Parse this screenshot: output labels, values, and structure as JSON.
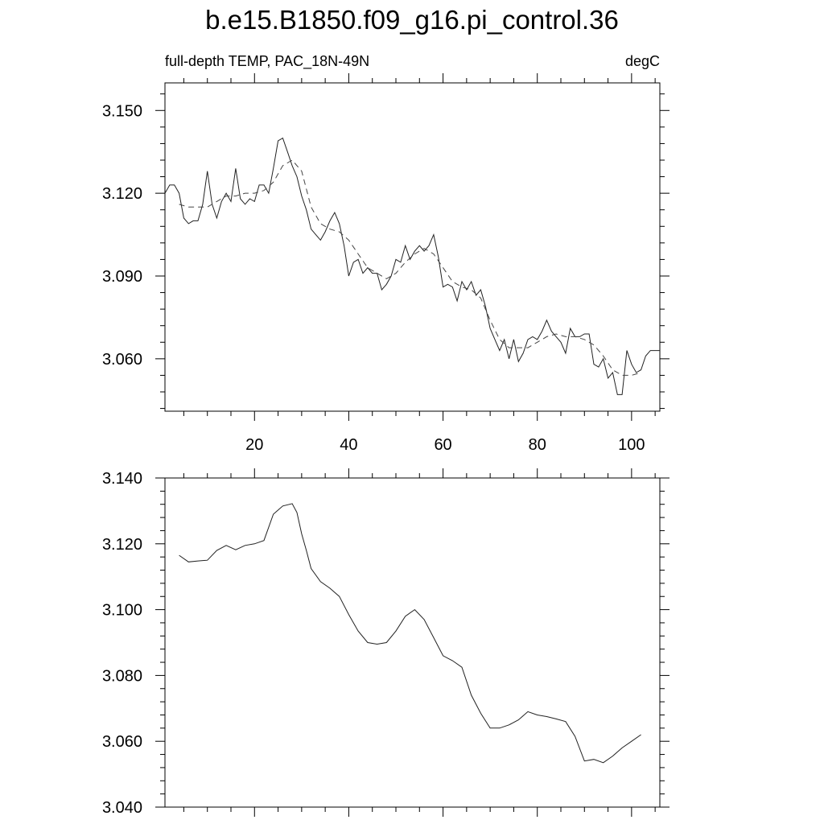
{
  "title": "b.e15.B1850.f09_g16.pi_control.36",
  "chart_data": [
    {
      "type": "line",
      "subtitle_left": "full-depth TEMP, PAC_18N-49N",
      "subtitle_right": "degC",
      "xlim": [
        1,
        106
      ],
      "ylim": [
        3.041,
        3.16
      ],
      "x_ticks": [
        20,
        40,
        60,
        80,
        100
      ],
      "x_tick_labels": [
        "20",
        "40",
        "60",
        "80",
        "100"
      ],
      "y_ticks": [
        3.06,
        3.09,
        3.12,
        3.15
      ],
      "y_tick_labels": [
        "3.060",
        "3.090",
        "3.120",
        "3.150"
      ],
      "series": [
        {
          "style": "solid",
          "x": [
            1,
            2,
            3,
            4,
            5,
            6,
            7,
            8,
            9,
            10,
            11,
            12,
            13,
            14,
            15,
            16,
            17,
            18,
            19,
            20,
            21,
            22,
            23,
            24,
            25,
            26,
            27,
            28,
            29,
            30,
            31,
            32,
            33,
            34,
            35,
            36,
            37,
            38,
            39,
            40,
            41,
            42,
            43,
            44,
            45,
            46,
            47,
            48,
            49,
            50,
            51,
            52,
            53,
            54,
            55,
            56,
            57,
            58,
            59,
            60,
            61,
            62,
            63,
            64,
            65,
            66,
            67,
            68,
            69,
            70,
            71,
            72,
            73,
            74,
            75,
            76,
            77,
            78,
            79,
            80,
            81,
            82,
            83,
            84,
            85,
            86,
            87,
            88,
            89,
            90,
            91,
            92,
            93,
            94,
            95,
            96,
            97,
            98,
            99,
            100,
            101,
            102,
            103,
            104,
            105,
            106
          ],
          "values": [
            3.12,
            3.123,
            3.123,
            3.12,
            3.111,
            3.109,
            3.11,
            3.11,
            3.116,
            3.128,
            3.116,
            3.111,
            3.117,
            3.12,
            3.117,
            3.129,
            3.118,
            3.116,
            3.118,
            3.117,
            3.123,
            3.123,
            3.12,
            3.129,
            3.139,
            3.14,
            3.135,
            3.13,
            3.126,
            3.119,
            3.114,
            3.107,
            3.105,
            3.103,
            3.106,
            3.11,
            3.113,
            3.109,
            3.101,
            3.09,
            3.095,
            3.096,
            3.091,
            3.093,
            3.091,
            3.091,
            3.085,
            3.087,
            3.09,
            3.096,
            3.095,
            3.101,
            3.096,
            3.099,
            3.101,
            3.099,
            3.101,
            3.105,
            3.097,
            3.086,
            3.087,
            3.086,
            3.081,
            3.088,
            3.085,
            3.088,
            3.083,
            3.085,
            3.079,
            3.071,
            3.067,
            3.063,
            3.067,
            3.06,
            3.067,
            3.059,
            3.062,
            3.067,
            3.068,
            3.067,
            3.07,
            3.074,
            3.07,
            3.068,
            3.066,
            3.062,
            3.071,
            3.068,
            3.068,
            3.069,
            3.069,
            3.058,
            3.057,
            3.06,
            3.053,
            3.055,
            3.047,
            3.047,
            3.063,
            3.058,
            3.055,
            3.056,
            3.061,
            3.063,
            3.063,
            3.063
          ]
        },
        {
          "style": "dashed",
          "x": [
            4,
            6,
            8,
            10,
            12,
            14,
            16,
            18,
            20,
            22,
            24,
            26,
            28,
            30,
            32,
            34,
            36,
            38,
            40,
            42,
            44,
            46,
            48,
            50,
            52,
            54,
            56,
            58,
            60,
            62,
            64,
            66,
            68,
            70,
            72,
            74,
            76,
            78,
            80,
            82,
            84,
            86,
            88,
            90,
            92,
            94,
            96,
            98,
            100,
            102
          ],
          "values": [
            3.116,
            3.115,
            3.115,
            3.115,
            3.117,
            3.119,
            3.119,
            3.12,
            3.12,
            3.121,
            3.124,
            3.13,
            3.132,
            3.128,
            3.115,
            3.109,
            3.107,
            3.106,
            3.103,
            3.098,
            3.093,
            3.091,
            3.089,
            3.091,
            3.095,
            3.098,
            3.1,
            3.098,
            3.093,
            3.088,
            3.086,
            3.085,
            3.082,
            3.074,
            3.067,
            3.064,
            3.064,
            3.064,
            3.066,
            3.068,
            3.069,
            3.068,
            3.068,
            3.067,
            3.065,
            3.061,
            3.056,
            3.054,
            3.054,
            3.055
          ]
        }
      ]
    },
    {
      "type": "line",
      "xlim": [
        1,
        106
      ],
      "ylim": [
        3.04,
        3.14
      ],
      "x_ticks": [
        20,
        40,
        60,
        80,
        100
      ],
      "y_ticks": [
        3.04,
        3.06,
        3.08,
        3.1,
        3.12,
        3.14
      ],
      "y_tick_labels": [
        "3.040",
        "3.060",
        "3.080",
        "3.100",
        "3.120",
        "3.140"
      ],
      "series": [
        {
          "style": "solid",
          "x": [
            4,
            6,
            8,
            10,
            12,
            14,
            16,
            18,
            20,
            22,
            24,
            26,
            28,
            29,
            30,
            31,
            32,
            34,
            36,
            38,
            40,
            42,
            44,
            46,
            48,
            50,
            52,
            54,
            56,
            58,
            60,
            62,
            64,
            66,
            68,
            70,
            72,
            74,
            76,
            78,
            80,
            82,
            84,
            86,
            88,
            90,
            92,
            94,
            96,
            98,
            100,
            102
          ],
          "values": [
            3.1165,
            3.1145,
            3.1148,
            3.115,
            3.118,
            3.1195,
            3.1182,
            3.1195,
            3.12,
            3.121,
            3.129,
            3.1315,
            3.1322,
            3.1295,
            3.123,
            3.118,
            3.1125,
            3.1085,
            3.1065,
            3.104,
            3.0985,
            3.0935,
            3.09,
            3.0895,
            3.09,
            3.0935,
            3.098,
            3.1,
            3.097,
            3.0915,
            3.086,
            3.0845,
            3.0825,
            3.074,
            3.0685,
            3.064,
            3.064,
            3.065,
            3.0665,
            3.069,
            3.068,
            3.0675,
            3.0668,
            3.066,
            3.0615,
            3.054,
            3.0545,
            3.0535,
            3.0555,
            3.058,
            3.06,
            3.062
          ]
        }
      ]
    }
  ]
}
